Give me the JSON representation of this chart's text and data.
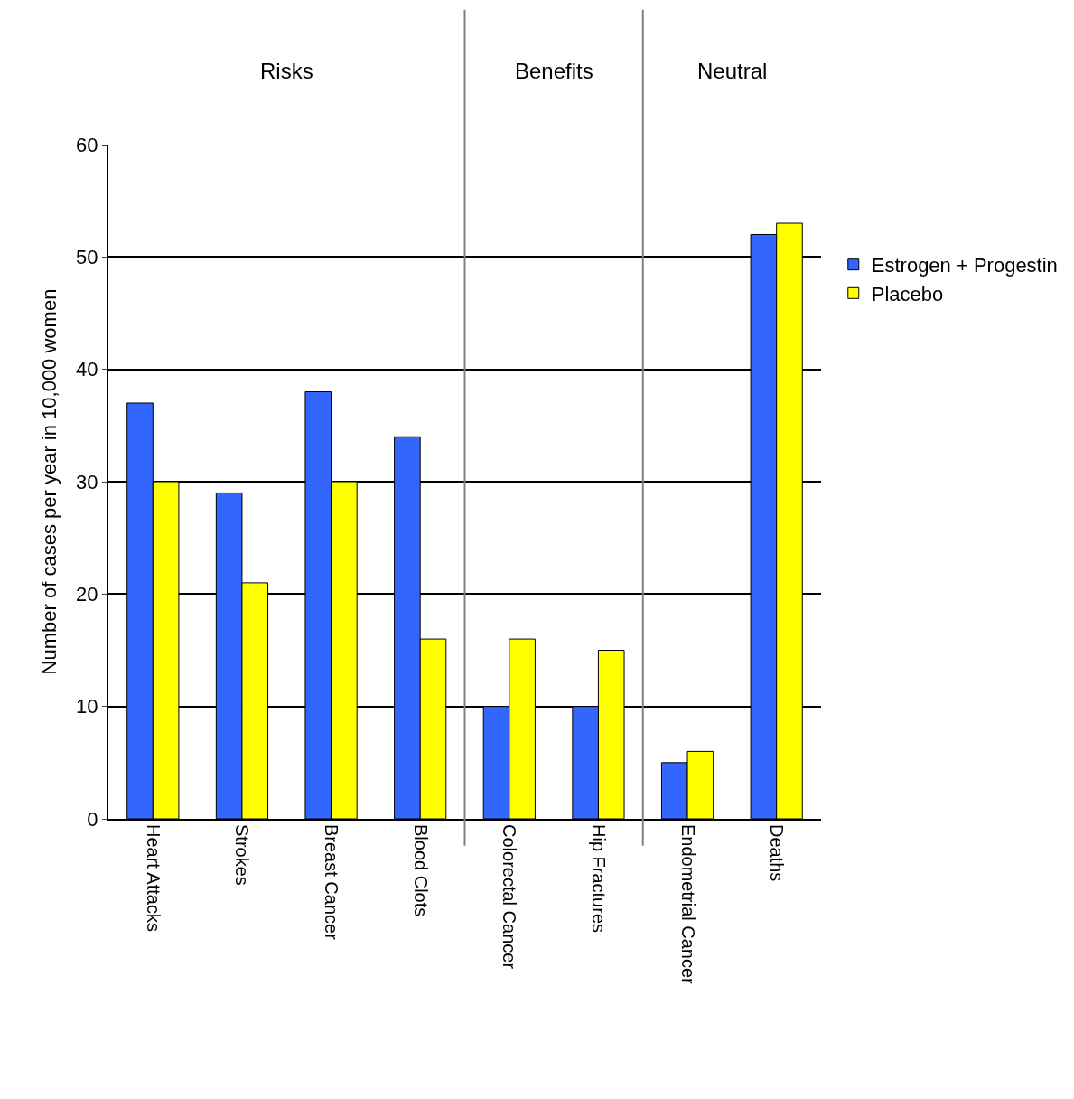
{
  "chart_data": {
    "type": "bar",
    "ylabel": "Number of cases per year in 10,000 women",
    "categories": [
      "Heart Attacks",
      "Strokes",
      "Breast Cancer",
      "Blood Clots",
      "Colorectal Cancer",
      "Hip Fractures",
      "Endometrial Cancer",
      "Deaths"
    ],
    "series": [
      {
        "name": "Estrogen + Progestin",
        "color": "#3366ff",
        "values": [
          37,
          29,
          38,
          34,
          10,
          10,
          5,
          52
        ]
      },
      {
        "name": "Placebo",
        "color": "#ffff00",
        "values": [
          30,
          21,
          30,
          16,
          16,
          15,
          6,
          53
        ]
      }
    ],
    "ylim": [
      0,
      60
    ],
    "yticks": [
      0,
      10,
      20,
      30,
      40,
      50,
      60
    ],
    "grid": "y",
    "legend": "right",
    "annotations": [
      "Risks",
      "Benefits",
      "Neutral"
    ]
  }
}
